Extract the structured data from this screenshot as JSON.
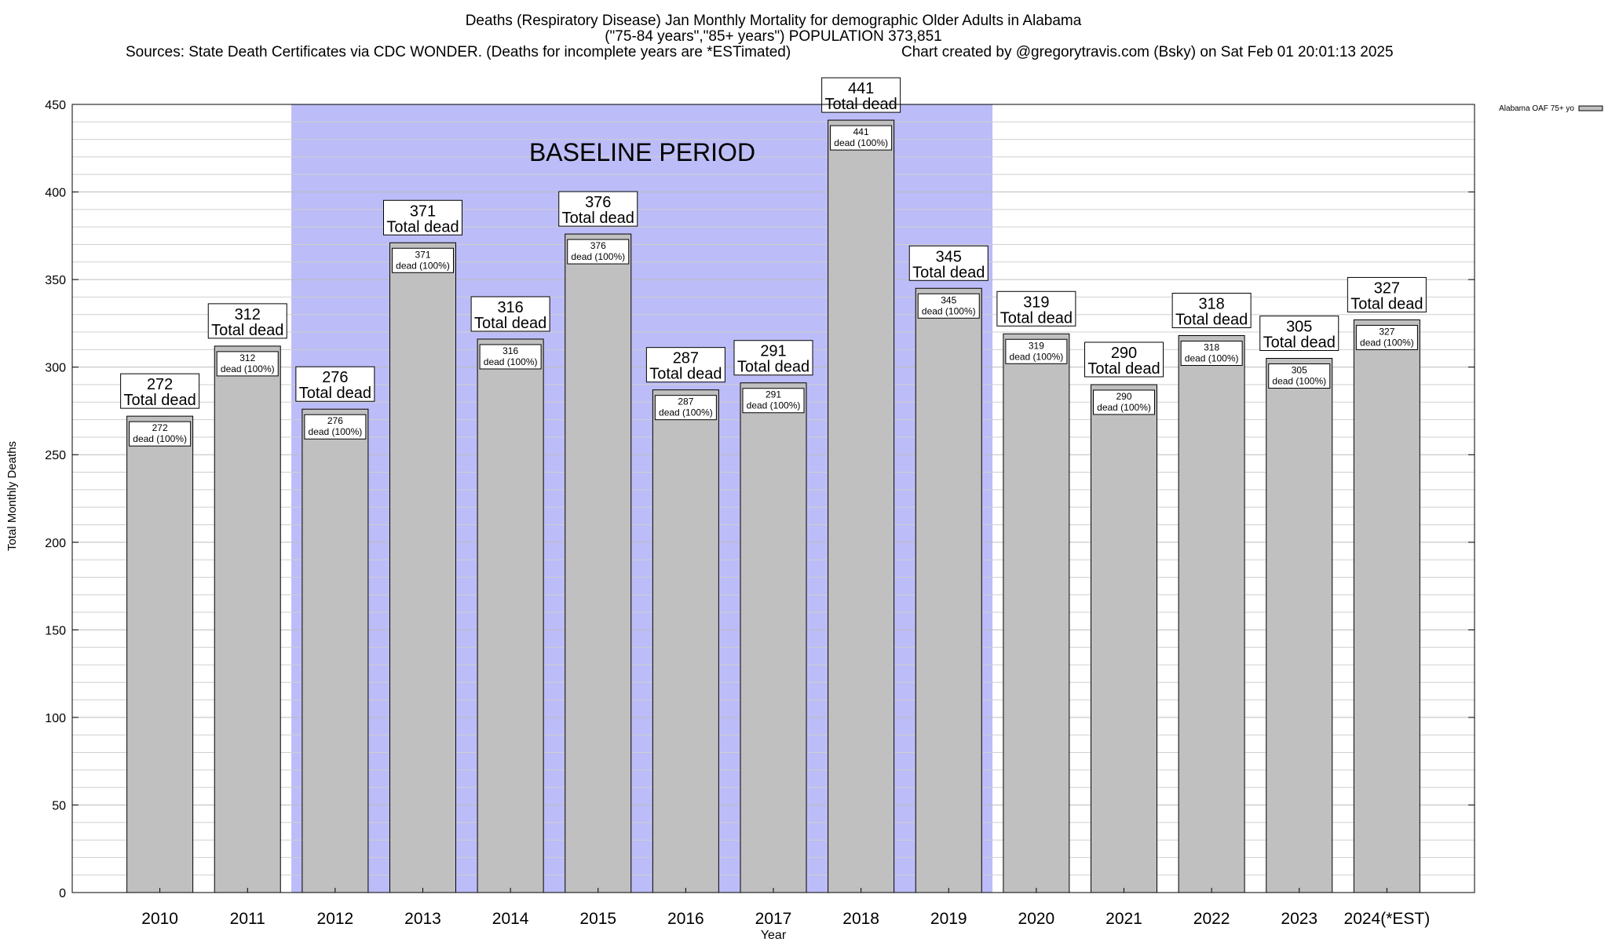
{
  "chart_data": {
    "type": "bar",
    "title_lines": [
      "Deaths (Respiratory Disease) Jan Monthly Mortality for demographic Older Adults in Alabama",
      "(\"75-84 years\",\"85+ years\") POPULATION 373,851"
    ],
    "sources": "Sources: State Death Certificates via CDC WONDER. (Deaths for incomplete years are *ESTimated)",
    "credit": "Chart created by @gregorytravis.com (Bsky) on Sat Feb 01 20:01:13 2025",
    "xlabel": "Year",
    "ylabel": "Total Monthly Deaths",
    "ylim": [
      0,
      450
    ],
    "ymajor_ticks": [
      0,
      50,
      100,
      150,
      200,
      250,
      300,
      350,
      400,
      450
    ],
    "yminor_step": 10,
    "categories": [
      "2010",
      "2011",
      "2012",
      "2013",
      "2014",
      "2015",
      "2016",
      "2017",
      "2018",
      "2019",
      "2020",
      "2021",
      "2022",
      "2023",
      "2024(*EST)"
    ],
    "series": [
      {
        "name": "Alabama OAF 75+ yo",
        "values": [
          272,
          312,
          276,
          371,
          316,
          376,
          287,
          291,
          441,
          345,
          319,
          290,
          318,
          305,
          327
        ]
      }
    ],
    "total_label_suffix": "Total dead",
    "inner_label_suffix": "dead (100%)",
    "baseline": {
      "label": "BASELINE PERIOD",
      "start": "2012",
      "end": "2019",
      "color": "#bcbcf8"
    },
    "bar_color": "#c0c0c0",
    "grid": true,
    "legend_position": "top-right"
  }
}
